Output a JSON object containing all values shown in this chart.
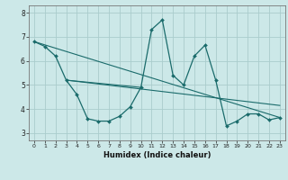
{
  "title": "",
  "xlabel": "Humidex (Indice chaleur)",
  "background_color": "#cce8e8",
  "grid_color": "#aacccc",
  "line_color": "#1a6b6b",
  "xlim": [
    -0.5,
    23.5
  ],
  "ylim": [
    2.7,
    8.3
  ],
  "yticks": [
    3,
    4,
    5,
    6,
    7,
    8
  ],
  "xticks": [
    0,
    1,
    2,
    3,
    4,
    5,
    6,
    7,
    8,
    9,
    10,
    11,
    12,
    13,
    14,
    15,
    16,
    17,
    18,
    19,
    20,
    21,
    22,
    23
  ],
  "series1_x": [
    0,
    1,
    2,
    3,
    4,
    5,
    6,
    7,
    8,
    9,
    10,
    11,
    12,
    13,
    14,
    15,
    16,
    17,
    18,
    19,
    20,
    21,
    22,
    23
  ],
  "series1_y": [
    6.8,
    6.6,
    6.2,
    5.2,
    4.6,
    3.6,
    3.5,
    3.5,
    3.7,
    4.1,
    4.9,
    7.3,
    7.7,
    5.4,
    5.0,
    6.2,
    6.65,
    5.2,
    3.3,
    3.5,
    3.8,
    3.8,
    3.55,
    3.65
  ],
  "series2_x": [
    0,
    23
  ],
  "series2_y": [
    6.8,
    3.65
  ],
  "series3_x": [
    3,
    23
  ],
  "series3_y": [
    5.2,
    4.15
  ],
  "series4_x": [
    3,
    10
  ],
  "series4_y": [
    5.2,
    4.9
  ]
}
